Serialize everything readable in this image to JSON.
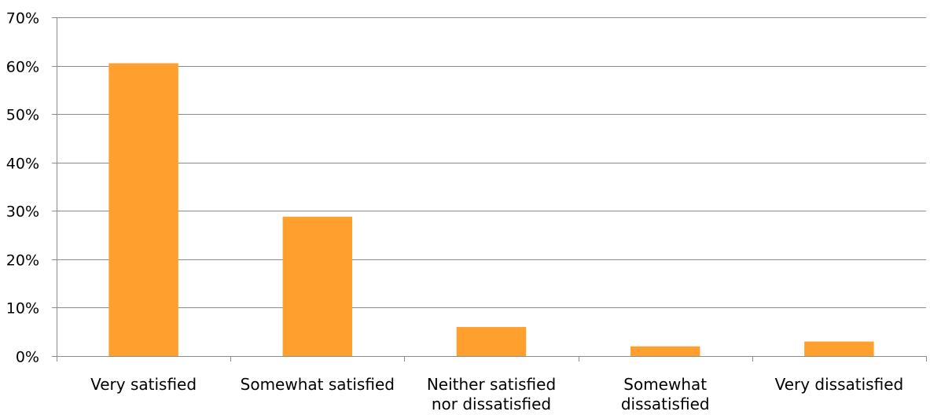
{
  "chart_data": {
    "type": "bar",
    "title": "",
    "xlabel": "",
    "ylabel": "",
    "categories": [
      [
        "Very satisfied"
      ],
      [
        "Somewhat satisfied"
      ],
      [
        "Neither satisfied",
        "nor dissatisfied"
      ],
      [
        "Somewhat",
        "dissatisfied"
      ],
      [
        "Very dissatisfied"
      ]
    ],
    "values": [
      60.5,
      28.8,
      6.0,
      2.0,
      3.0
    ],
    "ylim": [
      0,
      70
    ],
    "yticks": [
      0,
      10,
      20,
      30,
      40,
      50,
      60,
      70
    ],
    "ytick_labels": [
      "0%",
      "10%",
      "20%",
      "30%",
      "40%",
      "50%",
      "60%",
      "70%"
    ],
    "grid": true,
    "legend": "none",
    "colors": {
      "bar": "#FF9F2E",
      "grid": "#8C8C8C",
      "axis": "#8C8C8C",
      "text": "#000000"
    }
  }
}
